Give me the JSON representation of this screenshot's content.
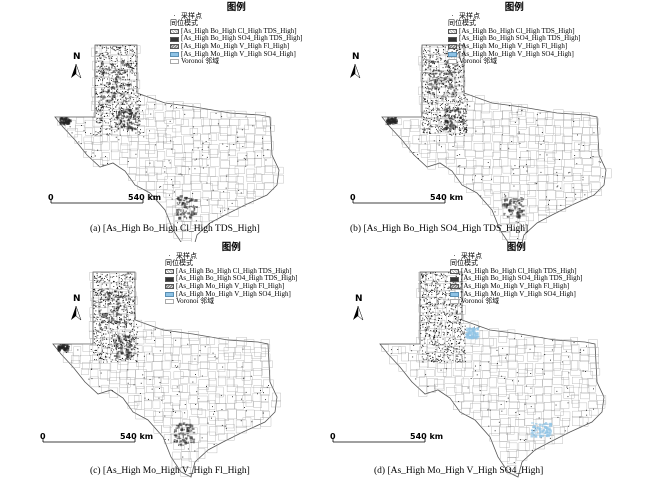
{
  "legend": {
    "title": "图例",
    "sample_point": "采样点",
    "pattern_heading": "同位模式",
    "voronoi": "Voronoi 邻域",
    "items": [
      "[As_High Bo_High Cl_High TDS_High]",
      "[As_High Bo_High SO4_High TDS_High]",
      "[As_High Mo_High V_High Fl_High]",
      "[As_High Mo_High V_High SO4_High]"
    ]
  },
  "scale": {
    "zero": "0",
    "distance": "540 km"
  },
  "north_label": "N",
  "panels": [
    {
      "caption": "(a) [As_High Bo_High Cl_High TDS_High]",
      "highlight": "cl",
      "highlight_color": "#222222"
    },
    {
      "caption": "(b) [As_High Bo_High SO4_High TDS_High]",
      "highlight": "so4",
      "highlight_color": "#222222"
    },
    {
      "caption": "(c) [As_High Mo_High V_High Fl_High]",
      "highlight": "fl",
      "highlight_color": "#222222"
    },
    {
      "caption": "(d) [As_High Mo_High V_High SO4_High]",
      "highlight": "so4h",
      "highlight_color": "#8ec3e6"
    }
  ],
  "colors": {
    "boundary": "#9a9a9a",
    "outline": "#555555",
    "points": "#111111",
    "blue": "#8ec3e6"
  }
}
